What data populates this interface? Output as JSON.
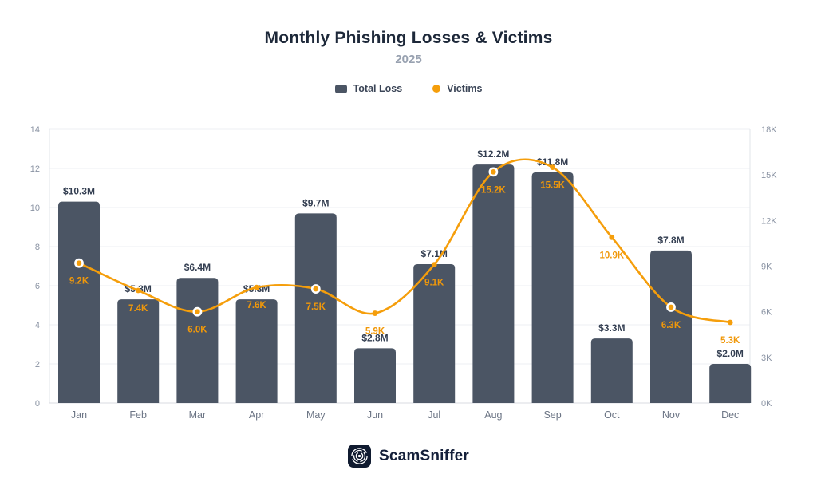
{
  "header": {
    "note": ""
  },
  "chart_data": {
    "type": "bar",
    "title": "Monthly Phishing Losses & Victims",
    "subtitle": "2025",
    "categories": [
      "Jan",
      "Feb",
      "Mar",
      "Apr",
      "May",
      "Jun",
      "Jul",
      "Aug",
      "Sep",
      "Oct",
      "Nov",
      "Dec"
    ],
    "series": [
      {
        "name": "Total Loss",
        "kind": "bar",
        "axis": "left",
        "unit": "$M",
        "values": [
          10.3,
          5.3,
          6.4,
          5.3,
          9.7,
          2.8,
          7.1,
          12.2,
          11.8,
          3.3,
          7.8,
          2.0
        ],
        "labels": [
          "$10.3M",
          "$5.3M",
          "$6.4M",
          "$5.3M",
          "$9.7M",
          "$2.8M",
          "$7.1M",
          "$12.2M",
          "$11.8M",
          "$3.3M",
          "$7.8M",
          "$2.0M"
        ]
      },
      {
        "name": "Victims",
        "kind": "line",
        "axis": "right",
        "unit": "K",
        "values": [
          9.2,
          7.4,
          6.0,
          7.6,
          7.5,
          5.9,
          9.1,
          15.2,
          15.5,
          10.9,
          6.3,
          5.3
        ],
        "labels": [
          "9.2K",
          "7.4K",
          "6.0K",
          "7.6K",
          "7.5K",
          "5.9K",
          "9.1K",
          "15.2K",
          "15.5K",
          "10.9K",
          "6.3K",
          "5.3K"
        ]
      }
    ],
    "left_axis": {
      "min": 0,
      "max": 14,
      "tick_step": 2,
      "ticks": [
        "0",
        "2",
        "4",
        "6",
        "8",
        "10",
        "12",
        "14"
      ]
    },
    "right_axis": {
      "min": 0,
      "max": 18,
      "tick_step": 3,
      "ticks": [
        "0K",
        "3K",
        "6K",
        "9K",
        "12K",
        "15K",
        "18K"
      ]
    },
    "grid": true,
    "legend_position": "top",
    "highlighted_points": [
      "Jan",
      "Mar",
      "May",
      "Aug",
      "Nov"
    ]
  },
  "legend": {
    "items": [
      {
        "label": "Total Loss",
        "color": "#4b5564",
        "shape": "square"
      },
      {
        "label": "Victims",
        "color": "#f59e0b",
        "shape": "circle"
      }
    ]
  },
  "footer": {
    "brand": "ScamSniffer"
  },
  "colors": {
    "bar": "#4b5564",
    "line": "#f59e0b",
    "bar_label": "#333e51",
    "victim_label": "#f0980a",
    "axis_tick": "#8a93a3",
    "month_label": "#6c7585",
    "gridline": "#edeff3",
    "axis_line": "#e2e5ea",
    "baseline": "#d8dbe1",
    "title": "#1d2839",
    "subtitle": "#98a1b0",
    "brand_box": "#101b30"
  }
}
